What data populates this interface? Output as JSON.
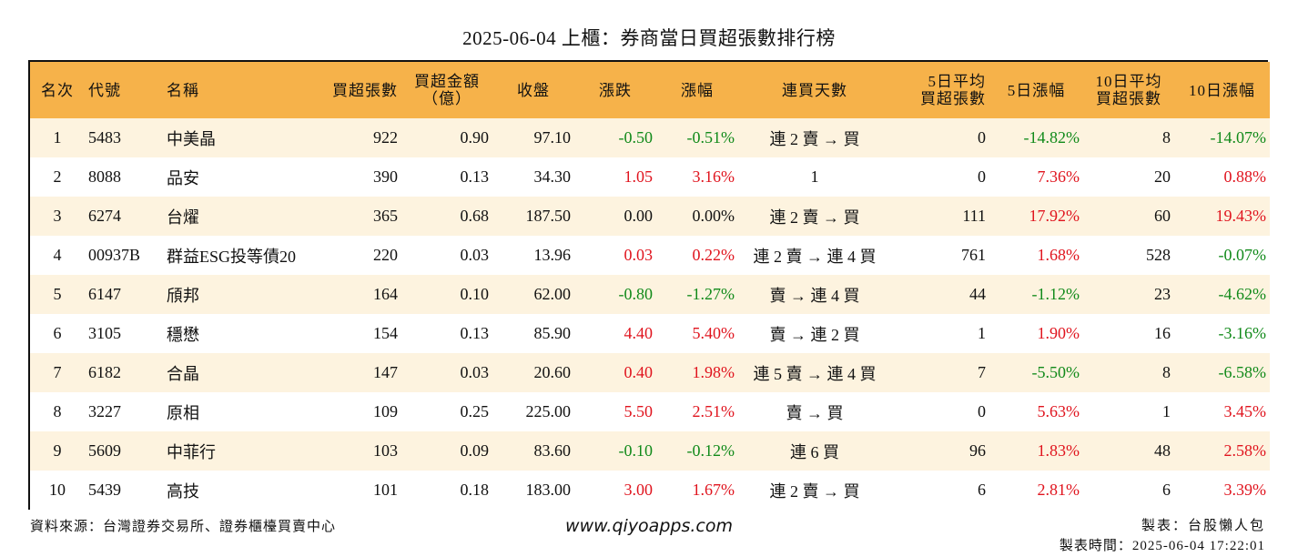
{
  "title": "2025-06-04 上櫃：券商當日買超張數排行榜",
  "headers": {
    "rank": "名次",
    "code": "代號",
    "name": "名稱",
    "buy_lots": "買超張數",
    "amount_line1": "買超金額",
    "amount_line2": "（億）",
    "close": "收盤",
    "change": "漲跌",
    "pct": "漲幅",
    "days": "連買天數",
    "avg5_line1": "5日平均",
    "avg5_line2": "買超張數",
    "pct5": "5日漲幅",
    "avg10_line1": "10日平均",
    "avg10_line2": "買超張數",
    "pct10": "10日漲幅"
  },
  "rows": [
    {
      "rank": "1",
      "code": "5483",
      "name": "中美晶",
      "buy": "922",
      "amount": "0.90",
      "close": "97.10",
      "change": "-0.50",
      "pct": "-0.51%",
      "days": "連 2 賣 → 買",
      "avg5": "0",
      "pct5": "-14.82%",
      "avg10": "8",
      "pct10": "-14.07%",
      "change_color": "green",
      "pct_color": "green",
      "pct5_color": "green",
      "pct10_color": "green"
    },
    {
      "rank": "2",
      "code": "8088",
      "name": "品安",
      "buy": "390",
      "amount": "0.13",
      "close": "34.30",
      "change": "1.05",
      "pct": "3.16%",
      "days": "1",
      "avg5": "0",
      "pct5": "7.36%",
      "avg10": "20",
      "pct10": "0.88%",
      "change_color": "red",
      "pct_color": "red",
      "pct5_color": "red",
      "pct10_color": "red"
    },
    {
      "rank": "3",
      "code": "6274",
      "name": "台燿",
      "buy": "365",
      "amount": "0.68",
      "close": "187.50",
      "change": "0.00",
      "pct": "0.00%",
      "days": "連 2 賣 → 買",
      "avg5": "111",
      "pct5": "17.92%",
      "avg10": "60",
      "pct10": "19.43%",
      "change_color": "black",
      "pct_color": "black",
      "pct5_color": "red",
      "pct10_color": "red"
    },
    {
      "rank": "4",
      "code": "00937B",
      "name": "群益ESG投等債20",
      "buy": "220",
      "amount": "0.03",
      "close": "13.96",
      "change": "0.03",
      "pct": "0.22%",
      "days": "連 2 賣 → 連 4 買",
      "avg5": "761",
      "pct5": "1.68%",
      "avg10": "528",
      "pct10": "-0.07%",
      "change_color": "red",
      "pct_color": "red",
      "pct5_color": "red",
      "pct10_color": "green"
    },
    {
      "rank": "5",
      "code": "6147",
      "name": "頎邦",
      "buy": "164",
      "amount": "0.10",
      "close": "62.00",
      "change": "-0.80",
      "pct": "-1.27%",
      "days": "賣 → 連 4 買",
      "avg5": "44",
      "pct5": "-1.12%",
      "avg10": "23",
      "pct10": "-4.62%",
      "change_color": "green",
      "pct_color": "green",
      "pct5_color": "green",
      "pct10_color": "green"
    },
    {
      "rank": "6",
      "code": "3105",
      "name": "穩懋",
      "buy": "154",
      "amount": "0.13",
      "close": "85.90",
      "change": "4.40",
      "pct": "5.40%",
      "days": "賣 → 連 2 買",
      "avg5": "1",
      "pct5": "1.90%",
      "avg10": "16",
      "pct10": "-3.16%",
      "change_color": "red",
      "pct_color": "red",
      "pct5_color": "red",
      "pct10_color": "green"
    },
    {
      "rank": "7",
      "code": "6182",
      "name": "合晶",
      "buy": "147",
      "amount": "0.03",
      "close": "20.60",
      "change": "0.40",
      "pct": "1.98%",
      "days": "連 5 賣 → 連 4 買",
      "avg5": "7",
      "pct5": "-5.50%",
      "avg10": "8",
      "pct10": "-6.58%",
      "change_color": "red",
      "pct_color": "red",
      "pct5_color": "green",
      "pct10_color": "green"
    },
    {
      "rank": "8",
      "code": "3227",
      "name": "原相",
      "buy": "109",
      "amount": "0.25",
      "close": "225.00",
      "change": "5.50",
      "pct": "2.51%",
      "days": "賣 → 買",
      "avg5": "0",
      "pct5": "5.63%",
      "avg10": "1",
      "pct10": "3.45%",
      "change_color": "red",
      "pct_color": "red",
      "pct5_color": "red",
      "pct10_color": "red"
    },
    {
      "rank": "9",
      "code": "5609",
      "name": "中菲行",
      "buy": "103",
      "amount": "0.09",
      "close": "83.60",
      "change": "-0.10",
      "pct": "-0.12%",
      "days": "連 6 買",
      "avg5": "96",
      "pct5": "1.83%",
      "avg10": "48",
      "pct10": "2.58%",
      "change_color": "green",
      "pct_color": "green",
      "pct5_color": "red",
      "pct10_color": "red"
    },
    {
      "rank": "10",
      "code": "5439",
      "name": "高技",
      "buy": "101",
      "amount": "0.18",
      "close": "183.00",
      "change": "3.00",
      "pct": "1.67%",
      "days": "連 2 賣 → 買",
      "avg5": "6",
      "pct5": "2.81%",
      "avg10": "6",
      "pct10": "3.39%",
      "change_color": "red",
      "pct_color": "red",
      "pct5_color": "red",
      "pct10_color": "red"
    }
  ],
  "footer": {
    "source": "資料來源：台灣證券交易所、證券櫃檯買賣中心",
    "website": "www.qiyoapps.com",
    "maker": "製表：台股懶人包",
    "made_time": "製表時間：2025-06-04 17:22:01"
  },
  "colors": {
    "header_bg": "#f6b24a",
    "odd_row_bg": "#fdf3df",
    "up": "#e0141e",
    "down": "#118a1a"
  }
}
